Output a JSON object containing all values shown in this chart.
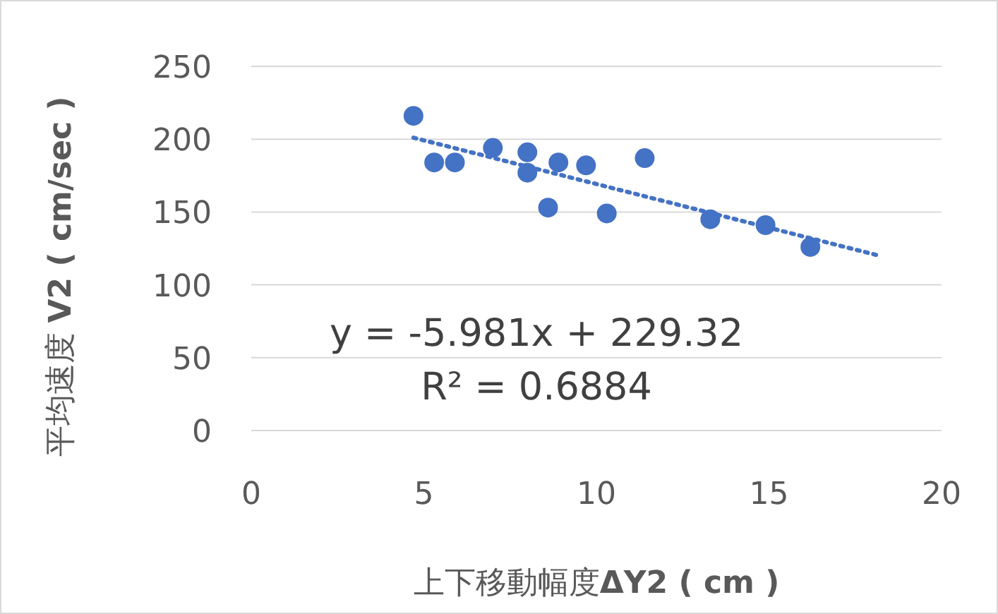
{
  "chart_data": {
    "type": "scatter",
    "xlabel": "上下移動幅度**ΔY2 ( cm )**",
    "ylabel": "平均速度 **V2 ( cm/sec )**",
    "xlim": [
      0,
      20
    ],
    "xticks": [
      0,
      5,
      10,
      15,
      20
    ],
    "ylim": [
      0,
      250
    ],
    "yticks": [
      0,
      50,
      100,
      150,
      200,
      250
    ],
    "grid": "y",
    "series": [
      {
        "color": "#4472c4",
        "marker": "circle",
        "x": [
          4.7,
          5.3,
          5.9,
          7.0,
          8.0,
          8.0,
          8.6,
          8.9,
          9.7,
          10.3,
          11.4,
          13.3,
          14.9,
          16.2
        ],
        "values": [
          216,
          184,
          184,
          194,
          191,
          177,
          153,
          184,
          182,
          149,
          187,
          145,
          141,
          126
        ]
      },
      {
        "type": "line",
        "color": "#4472c4",
        "marker": "none",
        "line_style": "dotted",
        "x": [
          4.7,
          18.2
        ],
        "values": [
          201,
          120
        ]
      }
    ],
    "annotations": [
      "y = -5.981x + 229.32",
      "R² = 0.6884"
    ]
  }
}
